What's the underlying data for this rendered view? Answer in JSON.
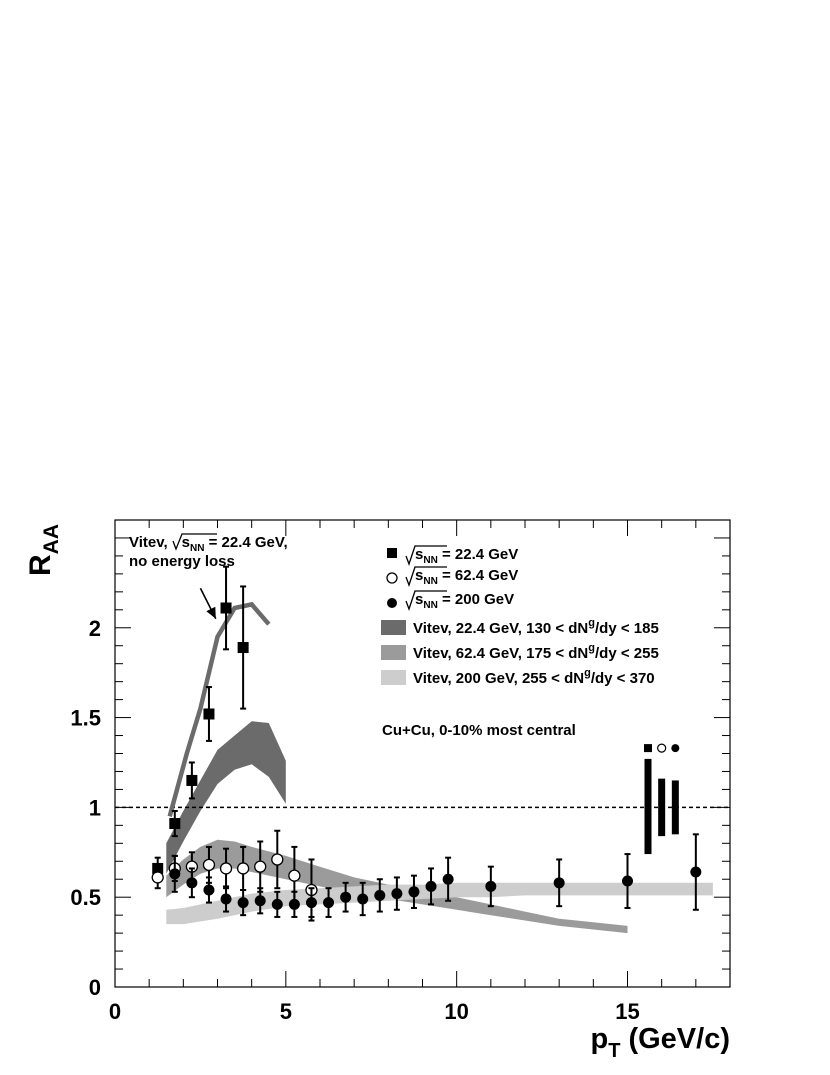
{
  "chart_data": {
    "type": "scatter",
    "xlabel": "p",
    "xlabel_sub": "T",
    "xlabel_unit": " (GeV/c)",
    "ylabel": "R",
    "ylabel_sub": "AA",
    "xlim": [
      0,
      18
    ],
    "ylim": [
      0,
      2.6
    ],
    "x_ticks": [
      0,
      5,
      10,
      15
    ],
    "y_ticks": [
      0,
      0.5,
      1,
      1.5,
      2
    ],
    "reference_line": 1,
    "series": [
      {
        "marker": "filled-square",
        "legend_prefix": "s",
        "legend_sub": "NN",
        "legend_suffix": " = 22.4 GeV",
        "x": [
          1.25,
          1.75,
          2.25,
          2.75,
          3.25,
          3.75
        ],
        "y": [
          0.66,
          0.91,
          1.15,
          1.52,
          2.11,
          1.89
        ],
        "yerr": [
          0.06,
          0.07,
          0.1,
          0.15,
          0.23,
          0.34
        ]
      },
      {
        "marker": "open-circle",
        "legend_prefix": "s",
        "legend_sub": "NN",
        "legend_suffix": " = 62.4 GeV",
        "x": [
          1.25,
          1.75,
          2.25,
          2.75,
          3.25,
          3.75,
          4.25,
          4.75,
          5.25,
          5.75
        ],
        "y": [
          0.61,
          0.66,
          0.67,
          0.68,
          0.66,
          0.66,
          0.67,
          0.71,
          0.62,
          0.54
        ],
        "yerr": [
          0.06,
          0.07,
          0.08,
          0.1,
          0.11,
          0.12,
          0.14,
          0.16,
          0.16,
          0.17
        ]
      },
      {
        "marker": "filled-circle",
        "legend_prefix": "s",
        "legend_sub": "NN",
        "legend_suffix": " = 200 GeV",
        "x": [
          1.75,
          2.25,
          2.75,
          3.25,
          3.75,
          4.25,
          4.75,
          5.25,
          5.75,
          6.25,
          6.75,
          7.25,
          7.75,
          8.25,
          8.75,
          9.25,
          9.75,
          11.0,
          13.0,
          15.0,
          17.0
        ],
        "y": [
          0.63,
          0.58,
          0.54,
          0.49,
          0.47,
          0.48,
          0.46,
          0.46,
          0.47,
          0.47,
          0.5,
          0.49,
          0.51,
          0.52,
          0.53,
          0.56,
          0.6,
          0.56,
          0.58,
          0.59,
          0.64
        ],
        "yerr": [
          0.1,
          0.08,
          0.07,
          0.07,
          0.07,
          0.07,
          0.07,
          0.07,
          0.08,
          0.08,
          0.08,
          0.09,
          0.09,
          0.09,
          0.09,
          0.1,
          0.12,
          0.11,
          0.13,
          0.15,
          0.21
        ]
      }
    ],
    "bands": [
      {
        "legend": "Vitev, 22.4 GeV, 130 < dN",
        "legend_sup": "g",
        "legend_tail": "/dy < 185",
        "color": "#6b6b6b",
        "x": [
          1.5,
          2.0,
          2.5,
          3.0,
          3.5,
          4.0,
          4.5,
          5.0
        ],
        "upper": [
          0.8,
          0.98,
          1.15,
          1.32,
          1.4,
          1.48,
          1.47,
          1.26
        ],
        "lower": [
          0.63,
          0.81,
          0.98,
          1.13,
          1.21,
          1.24,
          1.17,
          1.02
        ]
      },
      {
        "legend": "Vitev, 62.4 GeV, 175 < dN",
        "legend_sup": "g",
        "legend_tail": "/dy < 255",
        "color": "#9b9b9b",
        "x": [
          1.5,
          2.0,
          2.5,
          3.0,
          3.5,
          4.0,
          5.0,
          6.0,
          7.0,
          8.0,
          9.0,
          10.0,
          11.0,
          12.0,
          13.0,
          14.0,
          15.0
        ],
        "upper": [
          0.62,
          0.71,
          0.78,
          0.82,
          0.81,
          0.78,
          0.73,
          0.67,
          0.61,
          0.57,
          0.54,
          0.5,
          0.46,
          0.42,
          0.38,
          0.36,
          0.34
        ],
        "lower": [
          0.5,
          0.57,
          0.63,
          0.66,
          0.66,
          0.64,
          0.6,
          0.56,
          0.52,
          0.49,
          0.46,
          0.43,
          0.4,
          0.37,
          0.34,
          0.32,
          0.3
        ]
      },
      {
        "legend": "Vitev, 200 GeV, 255 < dN",
        "legend_sup": "g",
        "legend_tail": "/dy < 370",
        "color": "#cdcdcd",
        "x": [
          1.5,
          2.0,
          3.0,
          4.0,
          5.0,
          6.0,
          7.0,
          8.0,
          9.0,
          10.0,
          11.0,
          12.0,
          13.0,
          14.0,
          15.0,
          16.0,
          17.0,
          17.5
        ],
        "upper": [
          0.43,
          0.44,
          0.48,
          0.52,
          0.54,
          0.55,
          0.56,
          0.57,
          0.57,
          0.58,
          0.58,
          0.58,
          0.58,
          0.58,
          0.58,
          0.58,
          0.58,
          0.58
        ],
        "lower": [
          0.35,
          0.35,
          0.38,
          0.42,
          0.45,
          0.46,
          0.47,
          0.48,
          0.49,
          0.5,
          0.5,
          0.51,
          0.51,
          0.51,
          0.51,
          0.51,
          0.51,
          0.51
        ]
      }
    ],
    "curve": {
      "color": "#6b6b6b",
      "x": [
        1.6,
        2.1,
        2.5,
        3.0,
        3.5,
        4.0,
        4.5
      ],
      "y": [
        0.95,
        1.3,
        1.55,
        1.95,
        2.11,
        2.13,
        2.02
      ]
    },
    "arrow": {
      "from": [
        2.5,
        2.22
      ],
      "to": [
        2.95,
        2.05
      ]
    },
    "annotations": {
      "vitev_prefix": "Vitev,",
      "vitev_s": "s",
      "vitev_sub": "NN",
      "vitev_suffix": " = 22.4 GeV,",
      "vitev_line2": "no energy loss",
      "system": "Cu+Cu, 0-10% most central"
    },
    "systematic_bars": [
      {
        "marker": "filled-square",
        "x": 15.6,
        "lower": 0.74,
        "upper": 1.27
      },
      {
        "marker": "open-circle",
        "x": 16.0,
        "lower": 0.84,
        "upper": 1.16
      },
      {
        "marker": "filled-circle",
        "x": 16.4,
        "lower": 0.85,
        "upper": 1.15
      }
    ],
    "legend_position": "top-right",
    "grid": false
  }
}
